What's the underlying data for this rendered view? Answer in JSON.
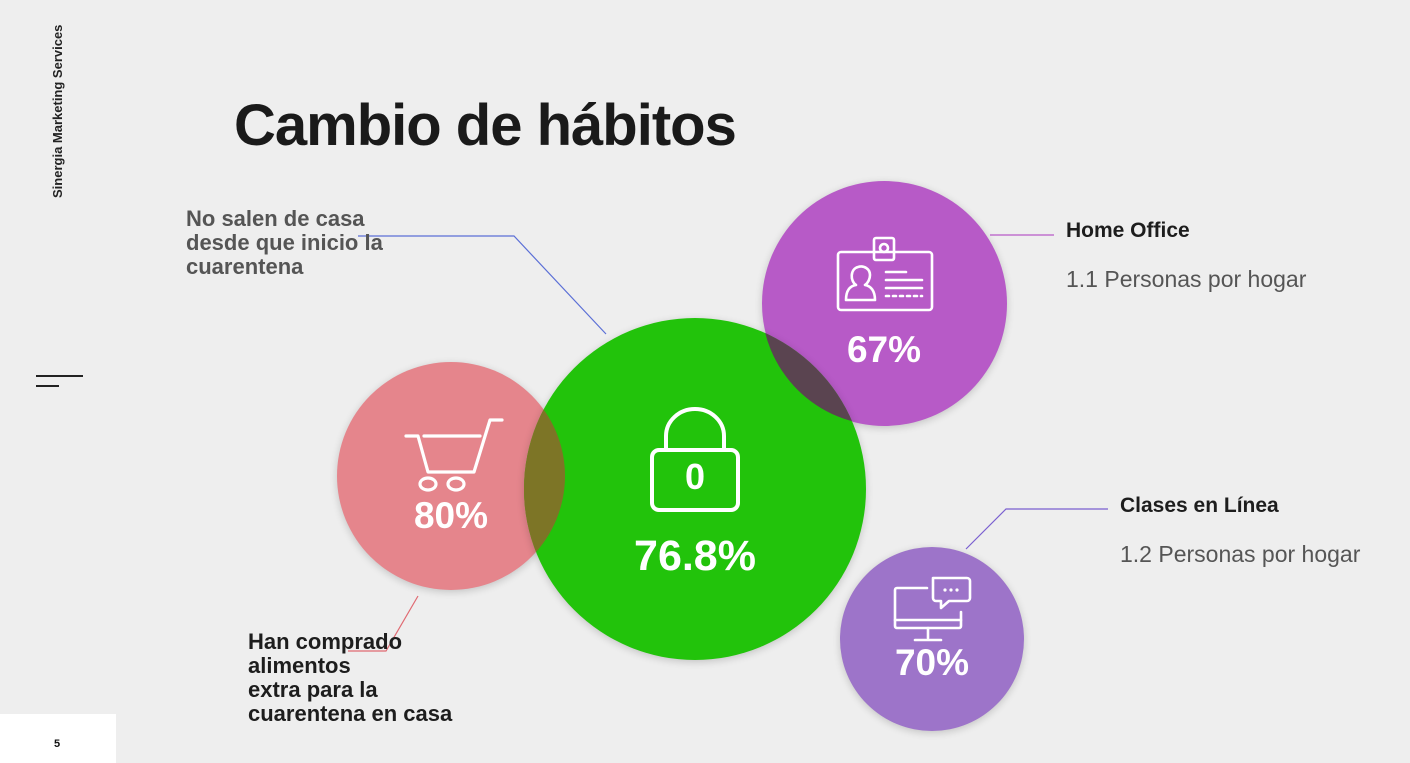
{
  "brand": "Sinergia Marketing Services",
  "page_number": "5",
  "title": "Cambio de hábitos",
  "annotations": {
    "no_salen": "No salen de casa\ndesde que inicio la\ncuarentena",
    "han_comprado": "Han comprado\nalimentos\nextra para la\ncuarentena en casa"
  },
  "home_office": {
    "title": "Home Office",
    "subtitle": "1.1 Personas por hogar"
  },
  "clases": {
    "title": "Clases en Línea",
    "subtitle": "1.2 Personas por hogar"
  },
  "bubbles": {
    "shopping": {
      "value": "80%",
      "color": "#e5858c",
      "icon": "shopping-cart-icon"
    },
    "lockdown": {
      "value": "76.8%",
      "color": "#22c30b",
      "icon": "padlock-icon",
      "icon_text": "0"
    },
    "home_office": {
      "value": "67%",
      "color": "#b75ac7",
      "icon": "id-badge-icon"
    },
    "classes": {
      "value": "70%",
      "color": "#9d74c9",
      "icon": "monitor-chat-icon"
    }
  }
}
